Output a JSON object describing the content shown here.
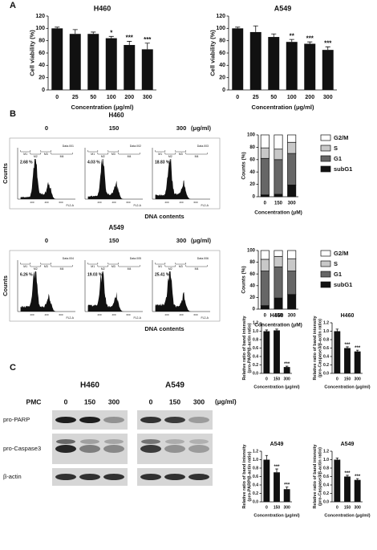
{
  "panels": [
    "A",
    "B",
    "C"
  ],
  "chart_data": [
    {
      "type": "bar",
      "title": "H460",
      "xlabel": "Concentration (μg/ml)",
      "ylabel": "Cell viability (%)",
      "categories": [
        "0",
        "25",
        "50",
        "100",
        "200",
        "300"
      ],
      "values": [
        100,
        91,
        91,
        84,
        73,
        66
      ],
      "errors": [
        2,
        7,
        3,
        3,
        6,
        10
      ],
      "annotations": [
        null,
        null,
        null,
        "*",
        "***",
        "***"
      ],
      "color": "#111111",
      "ylim": [
        0,
        120
      ],
      "yticks": [
        0,
        20,
        40,
        60,
        80,
        100,
        120
      ]
    },
    {
      "type": "bar",
      "title": "A549",
      "xlabel": "Concentration (μg/ml)",
      "ylabel": "Cell viability (%)",
      "categories": [
        "0",
        "25",
        "50",
        "100",
        "200",
        "300"
      ],
      "values": [
        100,
        94,
        86,
        78,
        75,
        65
      ],
      "errors": [
        2,
        10,
        5,
        4,
        3,
        5
      ],
      "annotations": [
        null,
        null,
        null,
        "**",
        "***",
        "***"
      ],
      "color": "#111111",
      "ylim": [
        0,
        120
      ],
      "yticks": [
        0,
        20,
        40,
        60,
        80,
        100,
        120
      ]
    },
    {
      "type": "stacked",
      "xlabel": "Concentration (μM)",
      "ylabel": "Counts (%)",
      "categories": [
        "0",
        "150",
        "300"
      ],
      "series": [
        {
          "name": "subG1",
          "color": "#111111",
          "values": [
            3,
            4,
            19
          ]
        },
        {
          "name": "G1",
          "color": "#666666",
          "values": [
            59,
            56,
            51
          ]
        },
        {
          "name": "S",
          "color": "#c8c8c8",
          "values": [
            17,
            17,
            18
          ]
        },
        {
          "name": "G2/M",
          "color": "#ffffff",
          "values": [
            21,
            23,
            12
          ]
        }
      ],
      "ylim": [
        0,
        100
      ],
      "yticks": [
        0,
        20,
        40,
        60,
        80,
        100
      ]
    },
    {
      "type": "stacked",
      "xlabel": "Concentration (μM)",
      "ylabel": "Counts (%)",
      "categories": [
        "0",
        "150",
        "300"
      ],
      "series": [
        {
          "name": "subG1",
          "color": "#111111",
          "values": [
            6,
            19,
            25
          ]
        },
        {
          "name": "G1",
          "color": "#666666",
          "values": [
            59,
            53,
            40
          ]
        },
        {
          "name": "S",
          "color": "#c8c8c8",
          "values": [
            20,
            18,
            21
          ]
        },
        {
          "name": "G2/M",
          "color": "#ffffff",
          "values": [
            15,
            10,
            14
          ]
        }
      ],
      "ylim": [
        0,
        100
      ],
      "yticks": [
        0,
        20,
        40,
        60,
        80,
        100
      ]
    },
    {
      "type": "bar",
      "title": "H460",
      "xlabel": "Concentration (μg/ml)",
      "ylabel": [
        "Relative ratio of band intensity",
        "(pro-PARP/β-actin ratio)"
      ],
      "categories": [
        "0",
        "150",
        "300"
      ],
      "values": [
        1.0,
        1.02,
        0.15
      ],
      "errors": [
        0.03,
        0.03,
        0.02
      ],
      "annotations": [
        null,
        null,
        "***"
      ],
      "color": "#111111",
      "ylim": [
        0,
        1.2
      ],
      "yticks": [
        {
          "value": 0,
          "label": "0.0"
        },
        0.2,
        0.4,
        0.6,
        0.8,
        {
          "value": 1,
          "label": "1.0"
        },
        1.2
      ]
    },
    {
      "type": "bar",
      "title": "H460",
      "xlabel": "Concentration (μg/ml)",
      "ylabel": [
        "Relative ratio of band intensity",
        "(pro-Caspase3/β-actin ratio)"
      ],
      "categories": [
        "0",
        "150",
        "300"
      ],
      "values": [
        1.0,
        0.6,
        0.52
      ],
      "errors": [
        0.05,
        0.03,
        0.03
      ],
      "annotations": [
        null,
        "***",
        "***"
      ],
      "color": "#111111",
      "ylim": [
        0,
        1.2
      ],
      "yticks": [
        {
          "value": 0,
          "label": "0.0"
        },
        0.2,
        0.4,
        0.6,
        0.8,
        {
          "value": 1,
          "label": "1.0"
        },
        1.2
      ]
    },
    {
      "type": "bar",
      "title": "A549",
      "xlabel": "Concentration (μg/ml)",
      "ylabel": [
        "Relative ratio of band intensity",
        "(pro-PARP/β-actin ratio)"
      ],
      "categories": [
        "0",
        "150",
        "300"
      ],
      "values": [
        1.0,
        0.7,
        0.3
      ],
      "errors": [
        0.1,
        0.08,
        0.05
      ],
      "annotations": [
        null,
        "***",
        "***"
      ],
      "color": "#111111",
      "ylim": [
        0,
        1.2
      ],
      "yticks": [
        {
          "value": 0,
          "label": "0.0"
        },
        0.2,
        0.4,
        0.6,
        0.8,
        {
          "value": 1,
          "label": "1.0"
        },
        1.2
      ]
    },
    {
      "type": "bar",
      "title": "A549",
      "xlabel": "Concentration (μg/ml)",
      "ylabel": [
        "Relative ratio of band intensity",
        "(pro-Caspase3/β-actin ratio)"
      ],
      "categories": [
        "0",
        "150",
        "300"
      ],
      "values": [
        1.0,
        0.6,
        0.52
      ],
      "errors": [
        0.04,
        0.03,
        0.03
      ],
      "annotations": [
        null,
        "***",
        "***"
      ],
      "color": "#111111",
      "ylim": [
        0,
        1.2
      ],
      "yticks": [
        {
          "value": 0,
          "label": "0.0"
        },
        0.2,
        0.4,
        0.6,
        0.8,
        {
          "value": 1,
          "label": "1.0"
        },
        1.2
      ]
    }
  ],
  "flow": {
    "xlabel": "DNA contents",
    "ylabel": "Counts",
    "channel": "FL2-A",
    "gates": [
      "M1",
      "M2",
      "M3",
      "M4"
    ],
    "axis_ticks": [
      "200",
      "400",
      "600"
    ],
    "rows": [
      {
        "title": "H460",
        "conditions": [
          "0",
          "150",
          "300"
        ],
        "unit": "(μg/ml)",
        "percents": [
          "2.68 %",
          "4.03 %",
          "18.83 %"
        ],
        "files": [
          "Data.001",
          "Data.002",
          "Data.003"
        ]
      },
      {
        "title": "A549",
        "conditions": [
          "0",
          "150",
          "300"
        ],
        "unit": "(μg/ml)",
        "percents": [
          "6.26 %",
          "19.03 %",
          "25.41 %"
        ],
        "files": [
          "Data.004",
          "Data.005",
          "Data.006"
        ]
      }
    ]
  },
  "blot": {
    "cell_lines": [
      "H460",
      "A549"
    ],
    "treatment": "PMC",
    "doses": [
      "0",
      "150",
      "300"
    ],
    "unit": "(μg/ml)",
    "proteins": [
      "pro-PARP",
      "pro-Caspase3",
      "β-actin"
    ]
  }
}
